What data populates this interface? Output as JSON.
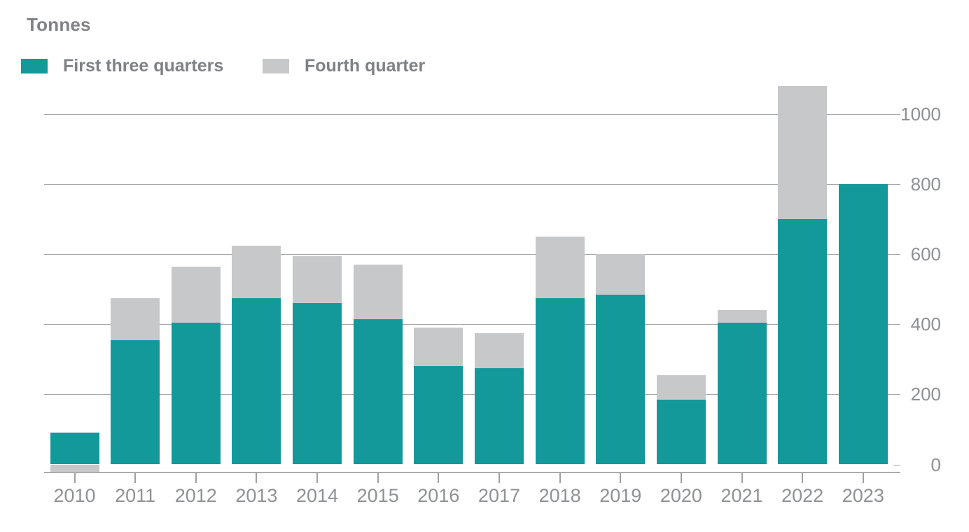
{
  "title": "Tonnes",
  "chart_data": {
    "type": "bar",
    "stacked": true,
    "title": "Tonnes",
    "ylabel": "Tonnes",
    "xlabel": "",
    "categories": [
      "2010",
      "2011",
      "2012",
      "2013",
      "2014",
      "2015",
      "2016",
      "2017",
      "2018",
      "2019",
      "2020",
      "2021",
      "2022",
      "2023"
    ],
    "series": [
      {
        "name": "First three quarters",
        "color": "#14999B",
        "values": [
          90,
          355,
          405,
          475,
          460,
          415,
          280,
          275,
          475,
          485,
          185,
          405,
          700,
          800
        ]
      },
      {
        "name": "Fourth quarter",
        "color": "#C7C8C9",
        "values": [
          -20,
          120,
          160,
          150,
          135,
          155,
          110,
          100,
          175,
          115,
          70,
          35,
          380,
          0
        ]
      }
    ],
    "totals": [
      70,
      475,
      565,
      625,
      595,
      570,
      390,
      375,
      650,
      600,
      255,
      440,
      1080,
      800
    ],
    "y_axis": {
      "ticks": [
        0,
        200,
        400,
        600,
        800,
        1000
      ],
      "min": -20,
      "max": 1100,
      "side": "right"
    },
    "grid": true,
    "legend_position": "top-left"
  }
}
